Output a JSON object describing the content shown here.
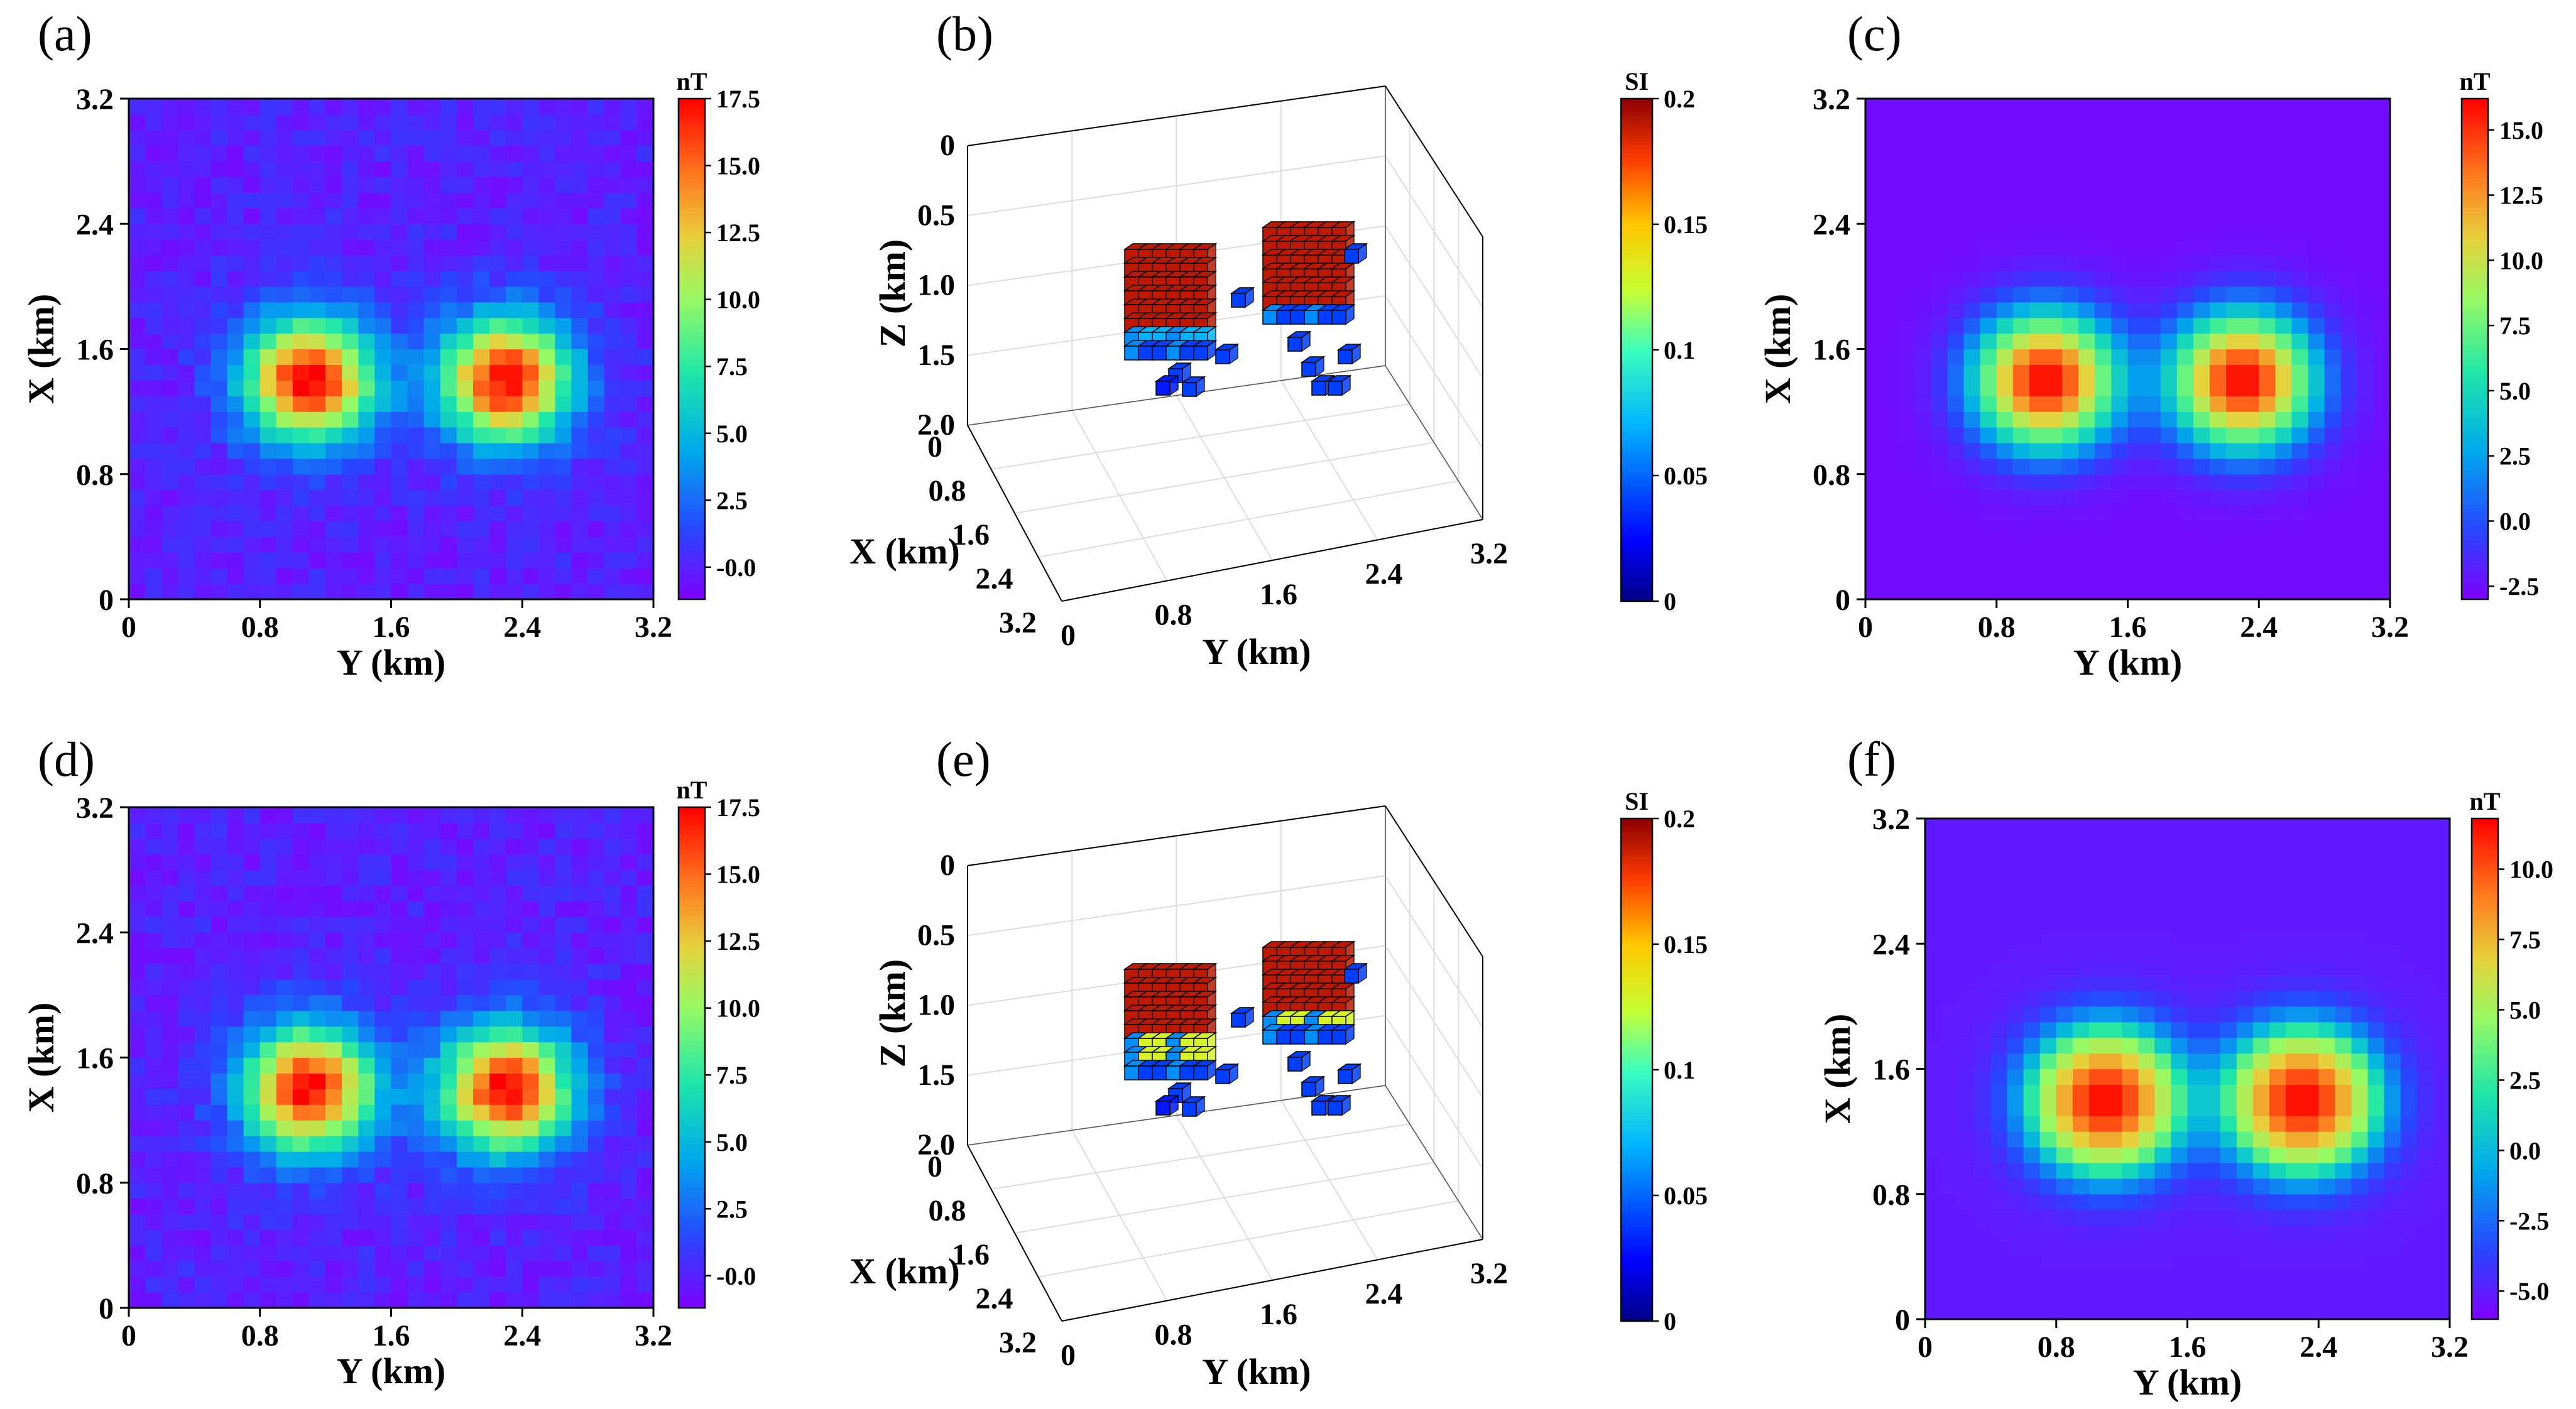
{
  "chart_data": [
    {
      "id": "a",
      "type": "heatmap",
      "panel_label": "(a)",
      "xlabel": "Y (km)",
      "ylabel": "X (km)",
      "xticks": [
        "0",
        "0.8",
        "1.6",
        "2.4",
        "3.2"
      ],
      "yticks": [
        "0",
        "0.8",
        "1.6",
        "2.4",
        "3.2"
      ],
      "xlim": [
        0,
        3.2
      ],
      "ylim": [
        0,
        3.2
      ],
      "grid_cells": 32,
      "noise": true,
      "colorbar": {
        "unit": "nT",
        "min": -1.2,
        "max": 17.5,
        "ticks": [
          "-0.0",
          "2.5",
          "5.0",
          "7.5",
          "10.0",
          "12.5",
          "15.0",
          "17.5"
        ],
        "tick_values": [
          0,
          2.5,
          5,
          7.5,
          10,
          12.5,
          15,
          17.5
        ]
      },
      "anomalies": [
        {
          "y": 1.1,
          "x": 1.4,
          "peak": 17.5
        },
        {
          "y": 2.3,
          "x": 1.4,
          "peak": 17.5
        }
      ]
    },
    {
      "id": "b",
      "type": "voxel3d",
      "panel_label": "(b)",
      "xlabel": "X (km)",
      "ylabel": "Y (km)",
      "zlabel": "Z (km)",
      "xticks": [
        "0",
        "0.8",
        "1.6",
        "2.4",
        "3.2"
      ],
      "yticks": [
        "0",
        "0.8",
        "1.6",
        "2.4",
        "3.2"
      ],
      "zticks": [
        "0",
        "0.5",
        "1.0",
        "1.5",
        "2.0"
      ],
      "colorbar": {
        "unit": "SI",
        "min": 0,
        "max": 0.2,
        "ticks": [
          "0",
          "0.05",
          "0.1",
          "0.15",
          "0.2"
        ],
        "tick_values": [
          0,
          0.05,
          0.1,
          0.15,
          0.2
        ]
      },
      "bodies": [
        {
          "name": "left body",
          "susceptibility": 0.19
        },
        {
          "name": "right body",
          "susceptibility": 0.19
        }
      ]
    },
    {
      "id": "c",
      "type": "heatmap",
      "panel_label": "(c)",
      "xlabel": "Y (km)",
      "ylabel": "X (km)",
      "xticks": [
        "0",
        "0.8",
        "1.6",
        "2.4",
        "3.2"
      ],
      "yticks": [
        "0",
        "0.8",
        "1.6",
        "2.4",
        "3.2"
      ],
      "xlim": [
        0,
        3.2
      ],
      "ylim": [
        0,
        3.2
      ],
      "grid_cells": 32,
      "noise": false,
      "colorbar": {
        "unit": "nT",
        "min": -3.0,
        "max": 16.2,
        "ticks": [
          "-2.5",
          "0.0",
          "2.5",
          "5.0",
          "7.5",
          "10.0",
          "12.5",
          "15.0"
        ],
        "tick_values": [
          -2.5,
          0,
          2.5,
          5,
          7.5,
          10,
          12.5,
          15
        ]
      },
      "anomalies": [
        {
          "y": 1.1,
          "x": 1.4,
          "peak": 16.2
        },
        {
          "y": 2.3,
          "x": 1.4,
          "peak": 16.2
        }
      ]
    },
    {
      "id": "d",
      "type": "heatmap",
      "panel_label": "(d)",
      "xlabel": "Y (km)",
      "ylabel": "X (km)",
      "xticks": [
        "0",
        "0.8",
        "1.6",
        "2.4",
        "3.2"
      ],
      "yticks": [
        "0",
        "0.8",
        "1.6",
        "2.4",
        "3.2"
      ],
      "xlim": [
        0,
        3.2
      ],
      "ylim": [
        0,
        3.2
      ],
      "grid_cells": 32,
      "noise": true,
      "colorbar": {
        "unit": "nT",
        "min": -1.2,
        "max": 17.5,
        "ticks": [
          "-0.0",
          "2.5",
          "5.0",
          "7.5",
          "10.0",
          "12.5",
          "15.0",
          "17.5"
        ],
        "tick_values": [
          0,
          2.5,
          5,
          7.5,
          10,
          12.5,
          15,
          17.5
        ]
      },
      "anomalies": [
        {
          "y": 1.1,
          "x": 1.4,
          "peak": 17.5
        },
        {
          "y": 2.3,
          "x": 1.4,
          "peak": 17.5
        }
      ]
    },
    {
      "id": "e",
      "type": "voxel3d",
      "panel_label": "(e)",
      "xlabel": "X (km)",
      "ylabel": "Y (km)",
      "zlabel": "Z (km)",
      "xticks": [
        "0",
        "0.8",
        "1.6",
        "2.4",
        "3.2"
      ],
      "yticks": [
        "0",
        "0.8",
        "1.6",
        "2.4",
        "3.2"
      ],
      "zticks": [
        "0",
        "0.5",
        "1.0",
        "1.5",
        "2.0"
      ],
      "colorbar": {
        "unit": "SI",
        "min": 0,
        "max": 0.2,
        "ticks": [
          "0",
          "0.05",
          "0.1",
          "0.15",
          "0.2"
        ],
        "tick_values": [
          0,
          0.05,
          0.1,
          0.15,
          0.2
        ]
      },
      "bodies": [
        {
          "name": "left body",
          "susceptibility": 0.19
        },
        {
          "name": "right body",
          "susceptibility": 0.19
        }
      ]
    },
    {
      "id": "f",
      "type": "heatmap",
      "panel_label": "(f)",
      "xlabel": "Y (km)",
      "ylabel": "X (km)",
      "xticks": [
        "0",
        "0.8",
        "1.6",
        "2.4",
        "3.2"
      ],
      "yticks": [
        "0",
        "0.8",
        "1.6",
        "2.4",
        "3.2"
      ],
      "xlim": [
        0,
        3.2
      ],
      "ylim": [
        0,
        3.2
      ],
      "grid_cells": 32,
      "noise": false,
      "colorbar": {
        "unit": "nT",
        "min": -6.0,
        "max": 11.8,
        "ticks": [
          "-5.0",
          "-2.5",
          "0.0",
          "2.5",
          "5.0",
          "7.5",
          "10.0"
        ],
        "tick_values": [
          -5,
          -2.5,
          0,
          2.5,
          5,
          7.5,
          10
        ]
      },
      "anomalies": [
        {
          "y": 1.1,
          "x": 1.4,
          "peak": 11.8
        },
        {
          "y": 2.3,
          "x": 1.4,
          "peak": 11.8
        }
      ]
    }
  ]
}
